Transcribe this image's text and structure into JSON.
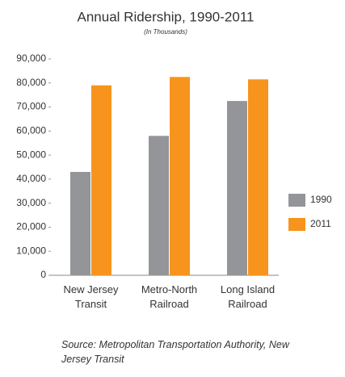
{
  "chart_data": {
    "type": "bar",
    "title": "Annual Ridership, 1990-2011",
    "subtitle": "(In Thousands)",
    "categories": [
      "New Jersey Transit",
      "Metro-North Railroad",
      "Long Island Railroad"
    ],
    "series": [
      {
        "name": "1990",
        "color": "#939598",
        "values": [
          43000,
          58000,
          72500
        ]
      },
      {
        "name": "2011",
        "color": "#f7941d",
        "values": [
          79000,
          82500,
          81500
        ]
      }
    ],
    "ylim": [
      0,
      90000
    ],
    "yticks": [
      0,
      {
        "value": 10000,
        "label": "10,000"
      },
      {
        "value": 20000,
        "label": "20,000"
      },
      {
        "value": 30000,
        "label": "30,000"
      },
      {
        "value": 40000,
        "label": "40,000"
      },
      {
        "value": 50000,
        "label": "50,000"
      },
      {
        "value": 60000,
        "label": "60,000"
      },
      {
        "value": 70000,
        "label": "70,000"
      },
      {
        "value": 80000,
        "label": "80,000"
      },
      {
        "value": 90000,
        "label": "90,000"
      }
    ],
    "legend": "right",
    "source": "Source: Metropolitan Transportation Authority, New Jersey Transit"
  }
}
